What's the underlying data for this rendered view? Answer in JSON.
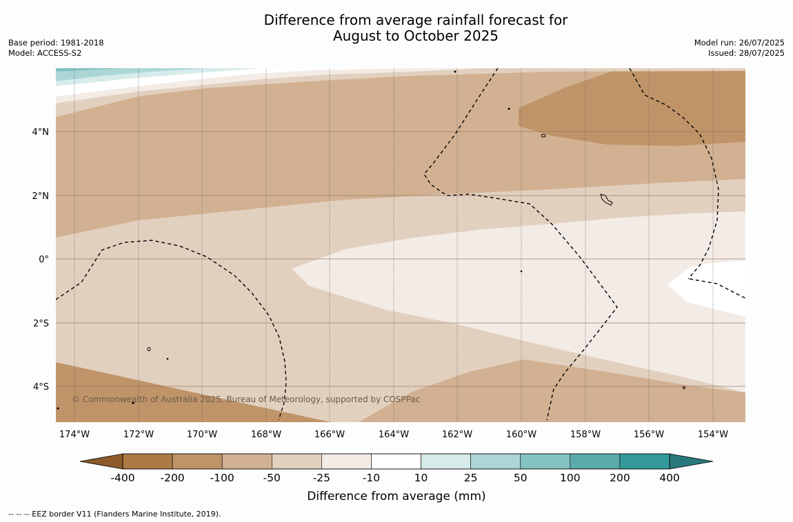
{
  "title": {
    "line1": "Difference from average rainfall forecast for",
    "line2": "August to October 2025"
  },
  "meta": {
    "base_period": "Base period: 1981-2018",
    "model": "Model: ACCESS-S2",
    "model_run": "Model run: 26/07/2025",
    "issued": "Issued: 28/07/2025"
  },
  "map": {
    "copyright": "© Commonwealth of Australia 2025, Bureau of Meteorology, supported by COSPPac",
    "lon_labels": [
      "174°W",
      "172°W",
      "170°W",
      "168°W",
      "166°W",
      "164°W",
      "162°W",
      "160°W",
      "158°W",
      "156°W",
      "154°W"
    ],
    "lat_labels": [
      "4°N",
      "2°N",
      "0°",
      "2°S",
      "4°S"
    ]
  },
  "colorbar": {
    "ticks": [
      "-400",
      "-200",
      "-100",
      "-50",
      "-25",
      "-10",
      "10",
      "25",
      "50",
      "100",
      "200",
      "400"
    ],
    "colors": [
      "#8c5a2b",
      "#ac7a44",
      "#c09469",
      "#d2b192",
      "#e2d0bf",
      "#f3ebe6",
      "#ffffff",
      "#d6ebea",
      "#acd6d6",
      "#82c2c0",
      "#5aabaa",
      "#33999a",
      "#28797b"
    ],
    "label": "Difference from average (mm)"
  },
  "footer": "--  --  -- EEZ border V11 (Flanders Marine Institute, 2019)."
}
